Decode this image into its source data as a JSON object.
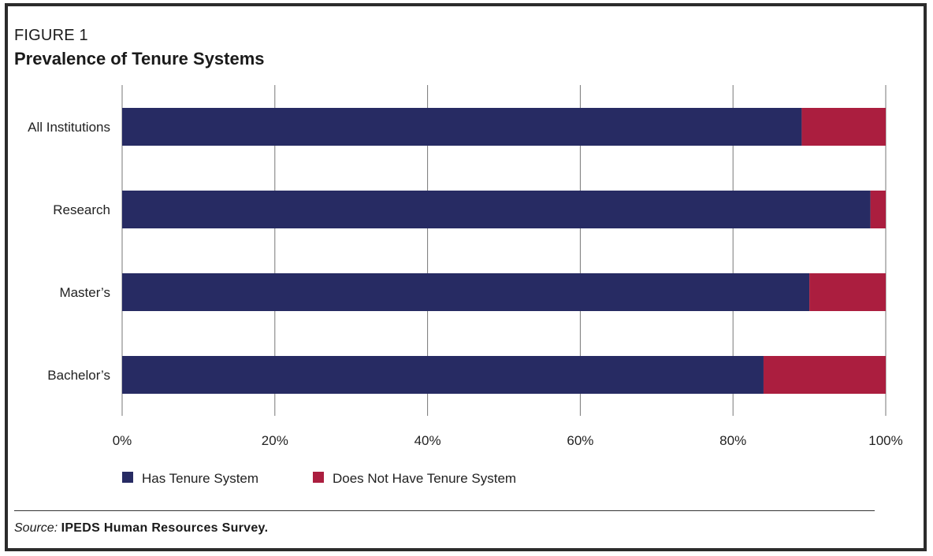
{
  "figure": {
    "label": "FIGURE 1",
    "title": "Prevalence of Tenure Systems"
  },
  "source": {
    "label": "Source:",
    "text": "IPEDS Human Resources Survey."
  },
  "colors": {
    "has_tenure": "#272b63",
    "no_tenure": "#ab1e3f",
    "grid": "#777777",
    "frame": "#2b2b2b"
  },
  "chart_data": {
    "type": "bar",
    "orientation": "horizontal",
    "stacked": true,
    "categories": [
      "All Institutions",
      "Research",
      "Master’s",
      "Bachelor’s"
    ],
    "series": [
      {
        "name": "Has Tenure System",
        "values": [
          89,
          98,
          90,
          84
        ]
      },
      {
        "name": "Does Not Have Tenure System",
        "values": [
          11,
          2,
          10,
          16
        ]
      }
    ],
    "xlim": [
      0,
      100
    ],
    "x_ticks": [
      "0%",
      "20%",
      "40%",
      "60%",
      "80%",
      "100%"
    ],
    "grid": true,
    "legend_position": "bottom-left"
  }
}
